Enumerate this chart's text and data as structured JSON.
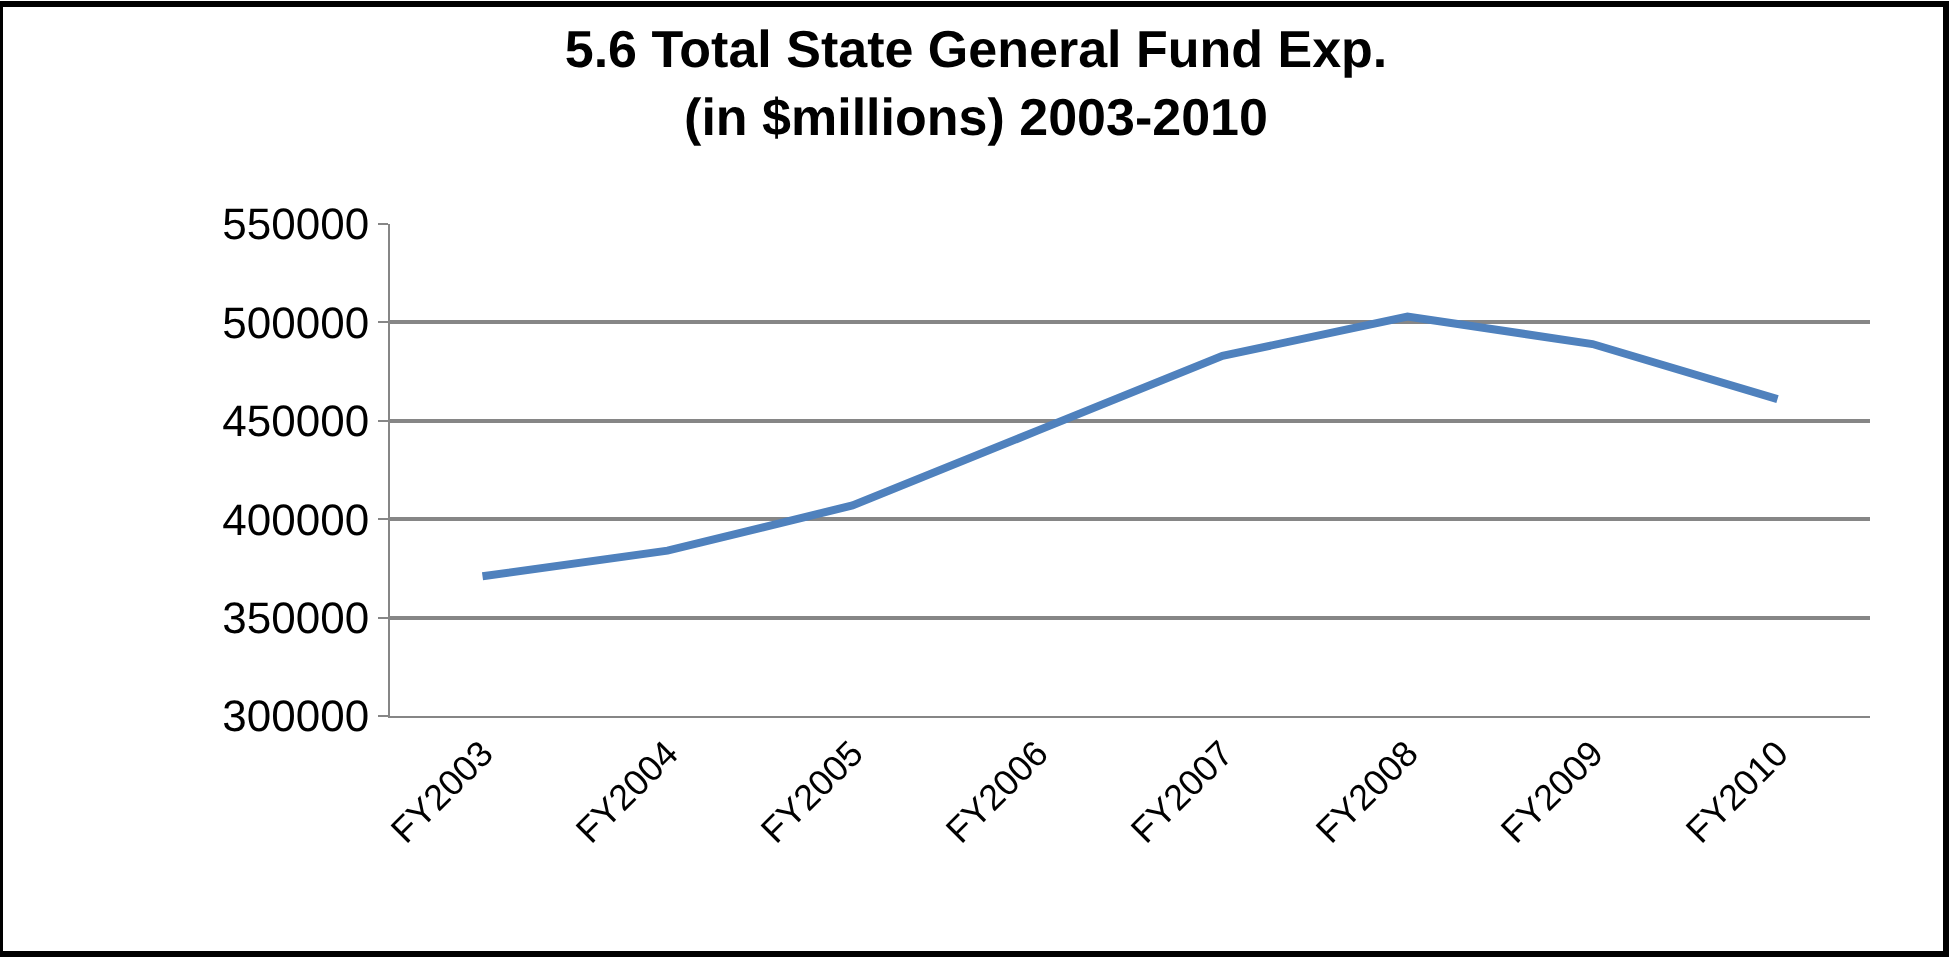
{
  "chart_data": {
    "type": "line",
    "title": "5.6 Total State General Fund Exp.\n(in $millions) 2003-2010",
    "categories": [
      "FY2003",
      "FY2004",
      "FY2005",
      "FY2006",
      "FY2007",
      "FY2008",
      "FY2009",
      "FY2010"
    ],
    "series": [
      {
        "color": "#4f81bd",
        "values": [
          371000,
          384000,
          407000,
          445000,
          483000,
          503000,
          489000,
          461000
        ]
      }
    ],
    "ylim": [
      300000,
      550000
    ],
    "yticks": [
      300000,
      350000,
      400000,
      450000,
      500000,
      550000
    ],
    "grid": "y",
    "legend": false,
    "marker": "none",
    "line_style": "solid"
  }
}
